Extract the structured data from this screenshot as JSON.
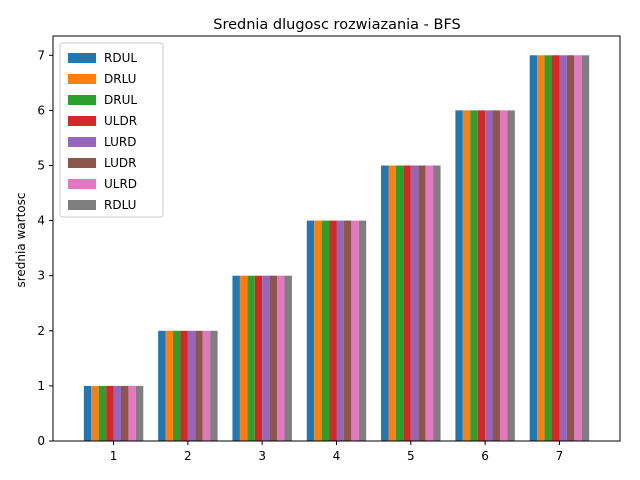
{
  "chart_data": {
    "type": "bar",
    "title": "Srednia dlugosc rozwiazania - BFS",
    "xlabel": "",
    "ylabel": "srednia wartosc",
    "categories": [
      "1",
      "2",
      "3",
      "4",
      "5",
      "6",
      "7"
    ],
    "ylim": [
      0,
      7.35
    ],
    "yticks": [
      "0",
      "1",
      "2",
      "3",
      "4",
      "5",
      "6",
      "7"
    ],
    "grid": false,
    "legend_position": "top-left",
    "series": [
      {
        "name": "RDUL",
        "color": "#1f77b4",
        "values": [
          1,
          2,
          3,
          4,
          5,
          6,
          7
        ]
      },
      {
        "name": "DRLU",
        "color": "#ff7f0e",
        "values": [
          1,
          2,
          3,
          4,
          5,
          6,
          7
        ]
      },
      {
        "name": "DRUL",
        "color": "#2ca02c",
        "values": [
          1,
          2,
          3,
          4,
          5,
          6,
          7
        ]
      },
      {
        "name": "ULDR",
        "color": "#d62728",
        "values": [
          1,
          2,
          3,
          4,
          5,
          6,
          7
        ]
      },
      {
        "name": "LURD",
        "color": "#9467bd",
        "values": [
          1,
          2,
          3,
          4,
          5,
          6,
          7
        ]
      },
      {
        "name": "LUDR",
        "color": "#8c564b",
        "values": [
          1,
          2,
          3,
          4,
          5,
          6,
          7
        ]
      },
      {
        "name": "ULRD",
        "color": "#e377c2",
        "values": [
          1,
          2,
          3,
          4,
          5,
          6,
          7
        ]
      },
      {
        "name": "RDLU",
        "color": "#7f7f7f",
        "values": [
          1,
          2,
          3,
          4,
          5,
          6,
          7
        ]
      }
    ]
  }
}
